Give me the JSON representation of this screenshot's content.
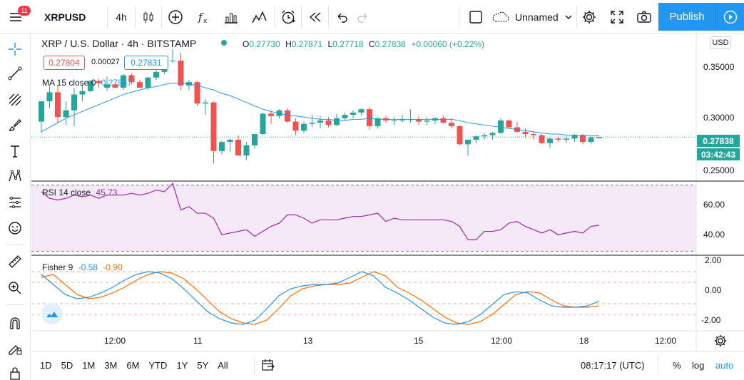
{
  "toolbar": {
    "badge": "11",
    "symbol": "XRPUSD",
    "interval": "4h",
    "layout_name": "Unnamed",
    "publish_label": "Publish"
  },
  "legend": {
    "title": "XRP / U.S. Dollar · 4h · BITSTAMP",
    "o_label": "O",
    "o_value": "0.27730",
    "h_label": "H",
    "h_value": "0.27871",
    "l_label": "L",
    "l_value": "0.27718",
    "c_label": "C",
    "c_value": "0.27838",
    "change": "+0.00060 (+0.22%)",
    "bid": "0.27804",
    "spread": "0.00027",
    "ask": "0.27831",
    "ma_label": "MA 15 close 0",
    "ma_value": "0.27947",
    "rsi_label": "RSI 14 close",
    "rsi_value": "45.73",
    "fisher_label": "Fisher 9",
    "fisher_value1": "-0.58",
    "fisher_value2": "-0.90"
  },
  "price_axis": {
    "currency": "USD",
    "ticks": [
      "0.35000",
      "0.30000",
      "0.25000"
    ],
    "last_price": "0.27838",
    "countdown": "03:42:43"
  },
  "rsi_axis": {
    "ticks": [
      "60.00",
      "40.00"
    ]
  },
  "fisher_axis": {
    "ticks": [
      "2.00",
      "0.00",
      "-2.00"
    ]
  },
  "time_axis": {
    "ticks": [
      "12:00",
      "11",
      "13",
      "15",
      "12:00",
      "18",
      "12:00"
    ]
  },
  "bottom": {
    "ranges": [
      "1D",
      "5D",
      "1M",
      "3M",
      "6M",
      "YTD",
      "1Y",
      "5Y",
      "All"
    ],
    "clock": "08:17:17 (UTC)",
    "pct_label": "%",
    "log_label": "log",
    "auto_label": "auto"
  },
  "colors": {
    "up": "#26a69a",
    "down": "#ef5350",
    "ma": "#2196f3",
    "rsi": "#9c27b0",
    "fisher1": "#2196f3",
    "fisher2": "#ff6d00",
    "accent": "#2196f3"
  },
  "chart_data": {
    "type": "candlestick",
    "title": "XRP / U.S. Dollar · 4h · BITSTAMP",
    "price_range": [
      0.24,
      0.37
    ],
    "candles": [
      {
        "o": 0.292,
        "h": 0.31,
        "l": 0.282,
        "c": 0.31
      },
      {
        "o": 0.31,
        "h": 0.323,
        "l": 0.304,
        "c": 0.318
      },
      {
        "o": 0.318,
        "h": 0.324,
        "l": 0.291,
        "c": 0.296
      },
      {
        "o": 0.296,
        "h": 0.31,
        "l": 0.289,
        "c": 0.302
      },
      {
        "o": 0.302,
        "h": 0.322,
        "l": 0.288,
        "c": 0.316
      },
      {
        "o": 0.316,
        "h": 0.325,
        "l": 0.31,
        "c": 0.319
      },
      {
        "o": 0.319,
        "h": 0.329,
        "l": 0.318,
        "c": 0.328
      },
      {
        "o": 0.328,
        "h": 0.33,
        "l": 0.322,
        "c": 0.326
      },
      {
        "o": 0.322,
        "h": 0.332,
        "l": 0.319,
        "c": 0.325
      },
      {
        "o": 0.325,
        "h": 0.327,
        "l": 0.322,
        "c": 0.322
      },
      {
        "o": 0.322,
        "h": 0.334,
        "l": 0.32,
        "c": 0.333
      },
      {
        "o": 0.333,
        "h": 0.335,
        "l": 0.325,
        "c": 0.327
      },
      {
        "o": 0.327,
        "h": 0.329,
        "l": 0.322,
        "c": 0.322
      },
      {
        "o": 0.322,
        "h": 0.332,
        "l": 0.32,
        "c": 0.331
      },
      {
        "o": 0.331,
        "h": 0.339,
        "l": 0.329,
        "c": 0.336
      },
      {
        "o": 0.336,
        "h": 0.347,
        "l": 0.334,
        "c": 0.346
      },
      {
        "o": 0.346,
        "h": 0.356,
        "l": 0.344,
        "c": 0.346
      },
      {
        "o": 0.346,
        "h": 0.353,
        "l": 0.32,
        "c": 0.324
      },
      {
        "o": 0.324,
        "h": 0.329,
        "l": 0.32,
        "c": 0.327
      },
      {
        "o": 0.327,
        "h": 0.328,
        "l": 0.306,
        "c": 0.308
      },
      {
        "o": 0.308,
        "h": 0.312,
        "l": 0.298,
        "c": 0.309
      },
      {
        "o": 0.309,
        "h": 0.31,
        "l": 0.255,
        "c": 0.266
      },
      {
        "o": 0.266,
        "h": 0.275,
        "l": 0.263,
        "c": 0.274
      },
      {
        "o": 0.274,
        "h": 0.277,
        "l": 0.265,
        "c": 0.276
      },
      {
        "o": 0.276,
        "h": 0.28,
        "l": 0.262,
        "c": 0.262
      },
      {
        "o": 0.262,
        "h": 0.274,
        "l": 0.258,
        "c": 0.271
      },
      {
        "o": 0.271,
        "h": 0.28,
        "l": 0.268,
        "c": 0.281
      },
      {
        "o": 0.281,
        "h": 0.3,
        "l": 0.28,
        "c": 0.299
      },
      {
        "o": 0.299,
        "h": 0.302,
        "l": 0.29,
        "c": 0.297
      },
      {
        "o": 0.297,
        "h": 0.303,
        "l": 0.295,
        "c": 0.302
      },
      {
        "o": 0.302,
        "h": 0.304,
        "l": 0.291,
        "c": 0.292
      },
      {
        "o": 0.292,
        "h": 0.295,
        "l": 0.28,
        "c": 0.284
      },
      {
        "o": 0.284,
        "h": 0.292,
        "l": 0.282,
        "c": 0.29
      },
      {
        "o": 0.29,
        "h": 0.298,
        "l": 0.287,
        "c": 0.291
      },
      {
        "o": 0.291,
        "h": 0.297,
        "l": 0.286,
        "c": 0.293
      },
      {
        "o": 0.293,
        "h": 0.296,
        "l": 0.287,
        "c": 0.289
      },
      {
        "o": 0.289,
        "h": 0.299,
        "l": 0.288,
        "c": 0.295
      },
      {
        "o": 0.295,
        "h": 0.3,
        "l": 0.293,
        "c": 0.298
      },
      {
        "o": 0.298,
        "h": 0.302,
        "l": 0.295,
        "c": 0.3
      },
      {
        "o": 0.3,
        "h": 0.304,
        "l": 0.298,
        "c": 0.303
      },
      {
        "o": 0.303,
        "h": 0.305,
        "l": 0.285,
        "c": 0.288
      },
      {
        "o": 0.288,
        "h": 0.296,
        "l": 0.286,
        "c": 0.295
      },
      {
        "o": 0.295,
        "h": 0.297,
        "l": 0.291,
        "c": 0.293
      },
      {
        "o": 0.293,
        "h": 0.296,
        "l": 0.289,
        "c": 0.293
      },
      {
        "o": 0.293,
        "h": 0.298,
        "l": 0.291,
        "c": 0.294
      },
      {
        "o": 0.294,
        "h": 0.303,
        "l": 0.291,
        "c": 0.294
      },
      {
        "o": 0.294,
        "h": 0.297,
        "l": 0.289,
        "c": 0.292
      },
      {
        "o": 0.292,
        "h": 0.296,
        "l": 0.289,
        "c": 0.293
      },
      {
        "o": 0.293,
        "h": 0.296,
        "l": 0.29,
        "c": 0.295
      },
      {
        "o": 0.295,
        "h": 0.297,
        "l": 0.29,
        "c": 0.291
      },
      {
        "o": 0.291,
        "h": 0.295,
        "l": 0.286,
        "c": 0.288
      },
      {
        "o": 0.288,
        "h": 0.289,
        "l": 0.271,
        "c": 0.272
      },
      {
        "o": 0.272,
        "h": 0.276,
        "l": 0.262,
        "c": 0.276
      },
      {
        "o": 0.276,
        "h": 0.28,
        "l": 0.273,
        "c": 0.279
      },
      {
        "o": 0.279,
        "h": 0.282,
        "l": 0.276,
        "c": 0.28
      },
      {
        "o": 0.28,
        "h": 0.283,
        "l": 0.276,
        "c": 0.282
      },
      {
        "o": 0.282,
        "h": 0.295,
        "l": 0.281,
        "c": 0.293
      },
      {
        "o": 0.293,
        "h": 0.294,
        "l": 0.286,
        "c": 0.287
      },
      {
        "o": 0.287,
        "h": 0.292,
        "l": 0.282,
        "c": 0.283
      },
      {
        "o": 0.283,
        "h": 0.286,
        "l": 0.278,
        "c": 0.281
      },
      {
        "o": 0.281,
        "h": 0.283,
        "l": 0.276,
        "c": 0.28
      },
      {
        "o": 0.28,
        "h": 0.281,
        "l": 0.272,
        "c": 0.273
      },
      {
        "o": 0.273,
        "h": 0.278,
        "l": 0.269,
        "c": 0.277
      },
      {
        "o": 0.277,
        "h": 0.279,
        "l": 0.274,
        "c": 0.276
      },
      {
        "o": 0.276,
        "h": 0.279,
        "l": 0.273,
        "c": 0.277
      },
      {
        "o": 0.277,
        "h": 0.281,
        "l": 0.274,
        "c": 0.28
      },
      {
        "o": 0.28,
        "h": 0.281,
        "l": 0.272,
        "c": 0.274
      },
      {
        "o": 0.274,
        "h": 0.279,
        "l": 0.272,
        "c": 0.278
      },
      {
        "o": 0.2773,
        "h": 0.27871,
        "l": 0.27718,
        "c": 0.27838
      }
    ],
    "ma": [
      0.283,
      0.287,
      0.291,
      0.295,
      0.298,
      0.301,
      0.304,
      0.307,
      0.31,
      0.313,
      0.316,
      0.318,
      0.32,
      0.322,
      0.323,
      0.325,
      0.326,
      0.326,
      0.325,
      0.324,
      0.322,
      0.32,
      0.317,
      0.315,
      0.312,
      0.309,
      0.306,
      0.303,
      0.301,
      0.299,
      0.298,
      0.297,
      0.296,
      0.295,
      0.294,
      0.294,
      0.293,
      0.293,
      0.294,
      0.294,
      0.295,
      0.294,
      0.294,
      0.294,
      0.294,
      0.294,
      0.294,
      0.294,
      0.294,
      0.294,
      0.294,
      0.293,
      0.291,
      0.29,
      0.289,
      0.288,
      0.287,
      0.286,
      0.285,
      0.284,
      0.283,
      0.282,
      0.281,
      0.281,
      0.28,
      0.28,
      0.28,
      0.2795,
      0.27947
    ],
    "rsi": {
      "range": [
        28,
        72
      ],
      "bands": [
        70,
        30
      ],
      "values": [
        66,
        62,
        61,
        62,
        64,
        63,
        64,
        62,
        64,
        64,
        64,
        65,
        64,
        65,
        67,
        66,
        71,
        55,
        57,
        53,
        53,
        50,
        40,
        41,
        42,
        43,
        39,
        42,
        45,
        47,
        52,
        52,
        50,
        47,
        49,
        49,
        49,
        50,
        51,
        51,
        52,
        53,
        48,
        50,
        49,
        49,
        49,
        49,
        49,
        49,
        48,
        45,
        37,
        37,
        42,
        42,
        43,
        47,
        48,
        45,
        43,
        41,
        43,
        40,
        41,
        42,
        41,
        45,
        45.73
      ]
    },
    "fisher": {
      "range": [
        -2.6,
        2.6
      ],
      "levels": [
        1.5,
        0.75,
        -0.75,
        -1.5
      ],
      "fisher": [
        1.3,
        0.6,
        -0.1,
        -0.4,
        -0.3,
        0.0,
        0.4,
        0.9,
        1.3,
        1.5,
        1.4,
        1.0,
        0.3,
        -0.5,
        -1.3,
        -1.8,
        -2.1,
        -2.2,
        -1.9,
        -1.1,
        -0.2,
        0.3,
        0.5,
        0.6,
        0.6,
        0.7,
        1.1,
        1.5,
        1.2,
        0.4,
        0.0,
        -0.5,
        -1.1,
        -1.7,
        -2.1,
        -2.2,
        -2.0,
        -1.5,
        -0.8,
        -0.1,
        0.1,
        0.0,
        -0.5,
        -0.9,
        -1.0,
        -1.0,
        -0.9,
        -0.58
      ],
      "trigger": [
        1.1,
        1.3,
        0.6,
        -0.1,
        -0.4,
        -0.3,
        0.0,
        0.4,
        0.9,
        1.3,
        1.5,
        1.4,
        1.0,
        0.3,
        -0.5,
        -1.3,
        -1.8,
        -2.1,
        -2.2,
        -1.9,
        -1.1,
        -0.2,
        0.3,
        0.5,
        0.6,
        0.6,
        0.7,
        1.1,
        1.5,
        1.2,
        0.4,
        0.0,
        -0.5,
        -1.1,
        -1.7,
        -2.1,
        -2.2,
        -2.0,
        -1.5,
        -0.8,
        -0.1,
        0.1,
        0.0,
        -0.5,
        -0.9,
        -1.0,
        -1.0,
        -0.9
      ]
    }
  }
}
